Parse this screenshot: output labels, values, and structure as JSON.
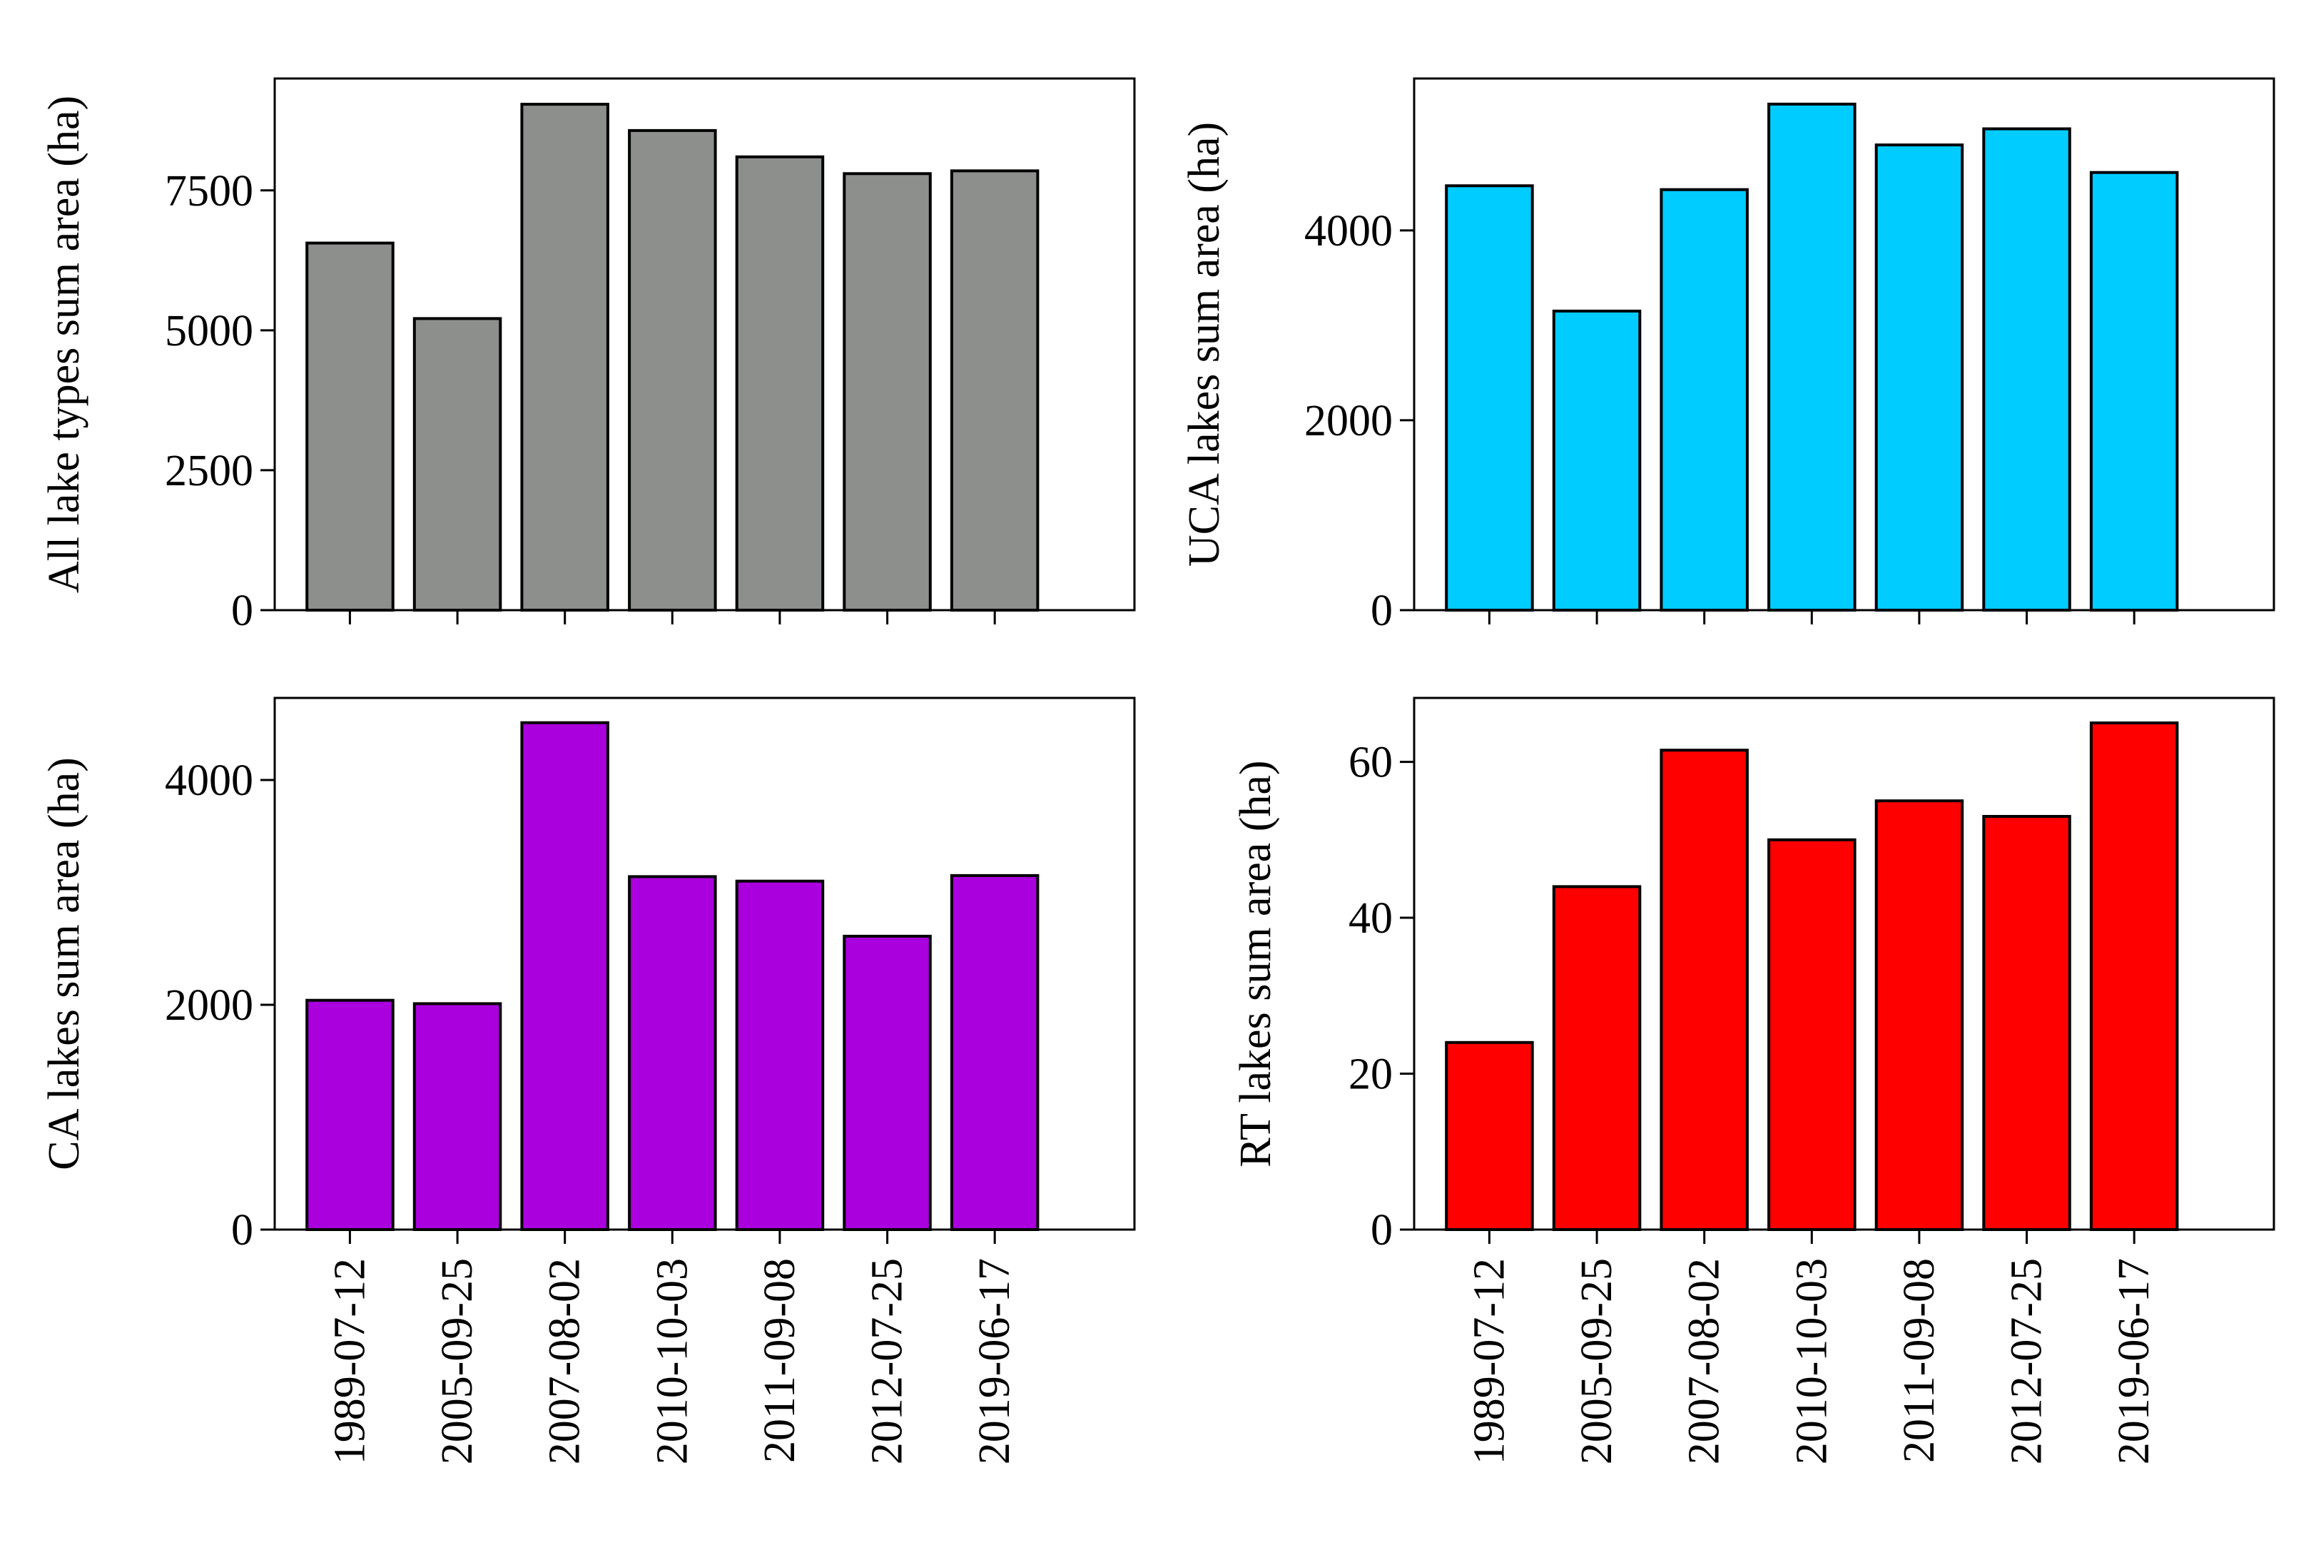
{
  "chart_data": [
    {
      "type": "bar",
      "categories": [
        "1989-07-12",
        "2005-09-25",
        "2007-08-02",
        "2010-10-03",
        "2011-09-08",
        "2012-07-25",
        "2019-06-17"
      ],
      "values": [
        6560,
        5210,
        9040,
        8570,
        8100,
        7800,
        7850
      ],
      "title": "",
      "xlabel": "",
      "ylabel": "All lake types sum area (ha)",
      "ylim": [
        0,
        9500
      ],
      "yticks": [
        "0",
        "2500",
        "5000",
        "7500"
      ],
      "yticks_values": [
        0,
        2500,
        5000,
        7500
      ],
      "bar_color": "#8c8f8c",
      "show_x_ticklabels": false,
      "grid": false
    },
    {
      "type": "bar",
      "categories": [
        "1989-07-12",
        "2005-09-25",
        "2007-08-02",
        "2010-10-03",
        "2011-09-08",
        "2012-07-25",
        "2019-06-17"
      ],
      "values": [
        4470,
        3150,
        4430,
        5330,
        4900,
        5070,
        4610
      ],
      "title": "",
      "xlabel": "",
      "ylabel": "UCA lakes sum area (ha)",
      "ylim": [
        0,
        5600
      ],
      "yticks": [
        "0",
        "2000",
        "4000"
      ],
      "yticks_values": [
        0,
        2000,
        4000
      ],
      "bar_color": "#00ccff",
      "show_x_ticklabels": false,
      "grid": false
    },
    {
      "type": "bar",
      "categories": [
        "1989-07-12",
        "2005-09-25",
        "2007-08-02",
        "2010-10-03",
        "2011-09-08",
        "2012-07-25",
        "2019-06-17"
      ],
      "values": [
        2040,
        2010,
        4510,
        3140,
        3100,
        2610,
        3150
      ],
      "title": "",
      "xlabel": "",
      "ylabel": "CA lakes sum area (ha)",
      "ylim": [
        0,
        4730
      ],
      "yticks": [
        "0",
        "2000",
        "4000"
      ],
      "yticks_values": [
        0,
        2000,
        4000
      ],
      "bar_color": "#aa00dd",
      "show_x_ticklabels": true,
      "grid": false
    },
    {
      "type": "bar",
      "categories": [
        "1989-07-12",
        "2005-09-25",
        "2007-08-02",
        "2010-10-03",
        "2011-09-08",
        "2012-07-25",
        "2019-06-17"
      ],
      "values": [
        24,
        44,
        61.5,
        50,
        55,
        53,
        65
      ],
      "title": "",
      "xlabel": "",
      "ylabel": "RT lakes sum area (ha)",
      "ylim": [
        0,
        68.2
      ],
      "yticks": [
        "0",
        "20",
        "40",
        "60"
      ],
      "yticks_values": [
        0,
        20,
        40,
        60
      ],
      "bar_color": "#ff0000",
      "show_x_ticklabels": true,
      "grid": false
    }
  ]
}
